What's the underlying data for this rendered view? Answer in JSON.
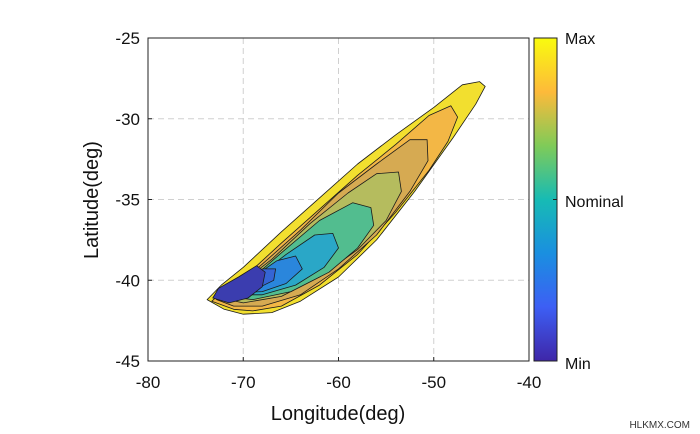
{
  "chart_data": {
    "type": "contour",
    "xlabel": "Longitude(deg)",
    "ylabel": "Latitude(deg)",
    "xlim": [
      -80,
      -40
    ],
    "ylim": [
      -45,
      -25
    ],
    "xticks": [
      -80,
      -70,
      -60,
      -50,
      -40
    ],
    "yticks": [
      -45,
      -40,
      -35,
      -30,
      -25
    ],
    "grid": true,
    "colorbar": {
      "labels": [
        "Max",
        "Nominal",
        "Min"
      ],
      "colors": [
        "#F9FB0E",
        "#FDBA3A",
        "#80CB58",
        "#17BBB4",
        "#1A8FE0",
        "#3D5FF4",
        "#3E26A8"
      ]
    },
    "levels": [
      {
        "color": "#F2DF2F",
        "points": [
          [
            -73.8,
            -41.2
          ],
          [
            -72,
            -41.8
          ],
          [
            -70,
            -42.1
          ],
          [
            -67,
            -42.0
          ],
          [
            -64,
            -41.3
          ],
          [
            -60,
            -39.8
          ],
          [
            -56,
            -37.5
          ],
          [
            -52,
            -34.5
          ],
          [
            -48,
            -31.2
          ],
          [
            -45.6,
            -29.1
          ],
          [
            -44.6,
            -28.0
          ],
          [
            -45.2,
            -27.7
          ],
          [
            -47,
            -27.9
          ],
          [
            -50,
            -29.3
          ],
          [
            -54,
            -31.0
          ],
          [
            -58,
            -32.8
          ],
          [
            -62,
            -34.9
          ],
          [
            -66,
            -37.0
          ],
          [
            -70,
            -39.2
          ],
          [
            -72.3,
            -40.3
          ]
        ]
      },
      {
        "color": "#F3B745",
        "points": [
          [
            -73.3,
            -41.3
          ],
          [
            -71,
            -41.8
          ],
          [
            -69,
            -41.9
          ],
          [
            -66,
            -41.6
          ],
          [
            -62,
            -40.3
          ],
          [
            -58,
            -38.4
          ],
          [
            -54,
            -35.8
          ],
          [
            -50.5,
            -33.2
          ],
          [
            -48.5,
            -31.4
          ],
          [
            -47.5,
            -29.9
          ],
          [
            -48.2,
            -29.2
          ],
          [
            -50.5,
            -29.8
          ],
          [
            -54,
            -31.6
          ],
          [
            -58,
            -33.5
          ],
          [
            -62,
            -35.6
          ],
          [
            -66,
            -37.7
          ],
          [
            -69.5,
            -39.6
          ],
          [
            -72,
            -40.6
          ]
        ]
      },
      {
        "color": "#D6AA52",
        "points": [
          [
            -72.8,
            -41.2
          ],
          [
            -71,
            -41.6
          ],
          [
            -68,
            -41.6
          ],
          [
            -64,
            -40.9
          ],
          [
            -60,
            -39.3
          ],
          [
            -56,
            -37.2
          ],
          [
            -52.5,
            -34.5
          ],
          [
            -50.6,
            -32.6
          ],
          [
            -50.7,
            -31.3
          ],
          [
            -52.5,
            -31.3
          ],
          [
            -56,
            -32.8
          ],
          [
            -60,
            -34.6
          ],
          [
            -64,
            -36.9
          ],
          [
            -68,
            -39.0
          ],
          [
            -71.3,
            -40.6
          ]
        ]
      },
      {
        "color": "#B5BC5E",
        "points": [
          [
            -72.4,
            -41.1
          ],
          [
            -70,
            -41.4
          ],
          [
            -66,
            -41.0
          ],
          [
            -62,
            -39.8
          ],
          [
            -58,
            -38.1
          ],
          [
            -55,
            -36.3
          ],
          [
            -53.4,
            -34.5
          ],
          [
            -53.7,
            -33.3
          ],
          [
            -56,
            -33.4
          ],
          [
            -59,
            -34.6
          ],
          [
            -63,
            -36.5
          ],
          [
            -67,
            -38.7
          ],
          [
            -70.5,
            -40.3
          ]
        ]
      },
      {
        "color": "#52BD8F",
        "points": [
          [
            -72,
            -41.0
          ],
          [
            -69,
            -41.2
          ],
          [
            -65,
            -40.7
          ],
          [
            -61,
            -39.5
          ],
          [
            -58,
            -38.0
          ],
          [
            -56.3,
            -36.6
          ],
          [
            -56.6,
            -35.5
          ],
          [
            -58.5,
            -35.2
          ],
          [
            -62,
            -36.3
          ],
          [
            -66,
            -38.3
          ],
          [
            -69.5,
            -40.1
          ]
        ]
      },
      {
        "color": "#2AA7C7",
        "points": [
          [
            -71.6,
            -40.9
          ],
          [
            -68,
            -40.9
          ],
          [
            -64.5,
            -40.3
          ],
          [
            -61.5,
            -39.2
          ],
          [
            -60,
            -38.0
          ],
          [
            -60.6,
            -37.1
          ],
          [
            -62.5,
            -37.2
          ],
          [
            -65.5,
            -38.4
          ],
          [
            -68.8,
            -39.9
          ]
        ]
      },
      {
        "color": "#2A86DC",
        "points": [
          [
            -71.2,
            -40.8
          ],
          [
            -68,
            -40.7
          ],
          [
            -65.5,
            -40.2
          ],
          [
            -63.8,
            -39.3
          ],
          [
            -64.5,
            -38.5
          ],
          [
            -66.5,
            -38.8
          ],
          [
            -69.2,
            -39.9
          ]
        ]
      },
      {
        "color": "#3565D4",
        "points": [
          [
            -71,
            -40.7
          ],
          [
            -68.5,
            -40.5
          ],
          [
            -66.8,
            -40.0
          ],
          [
            -66.6,
            -39.3
          ],
          [
            -68,
            -39.3
          ],
          [
            -70,
            -40.0
          ]
        ]
      },
      {
        "color": "#3B3DAF",
        "points": [
          [
            -73.2,
            -41.1
          ],
          [
            -71.5,
            -41.4
          ],
          [
            -69.5,
            -41.1
          ],
          [
            -68,
            -40.4
          ],
          [
            -67.7,
            -39.5
          ],
          [
            -68.6,
            -39.1
          ],
          [
            -70.5,
            -39.8
          ],
          [
            -72.6,
            -40.5
          ]
        ]
      }
    ]
  },
  "watermark": "HLKMX.COM"
}
